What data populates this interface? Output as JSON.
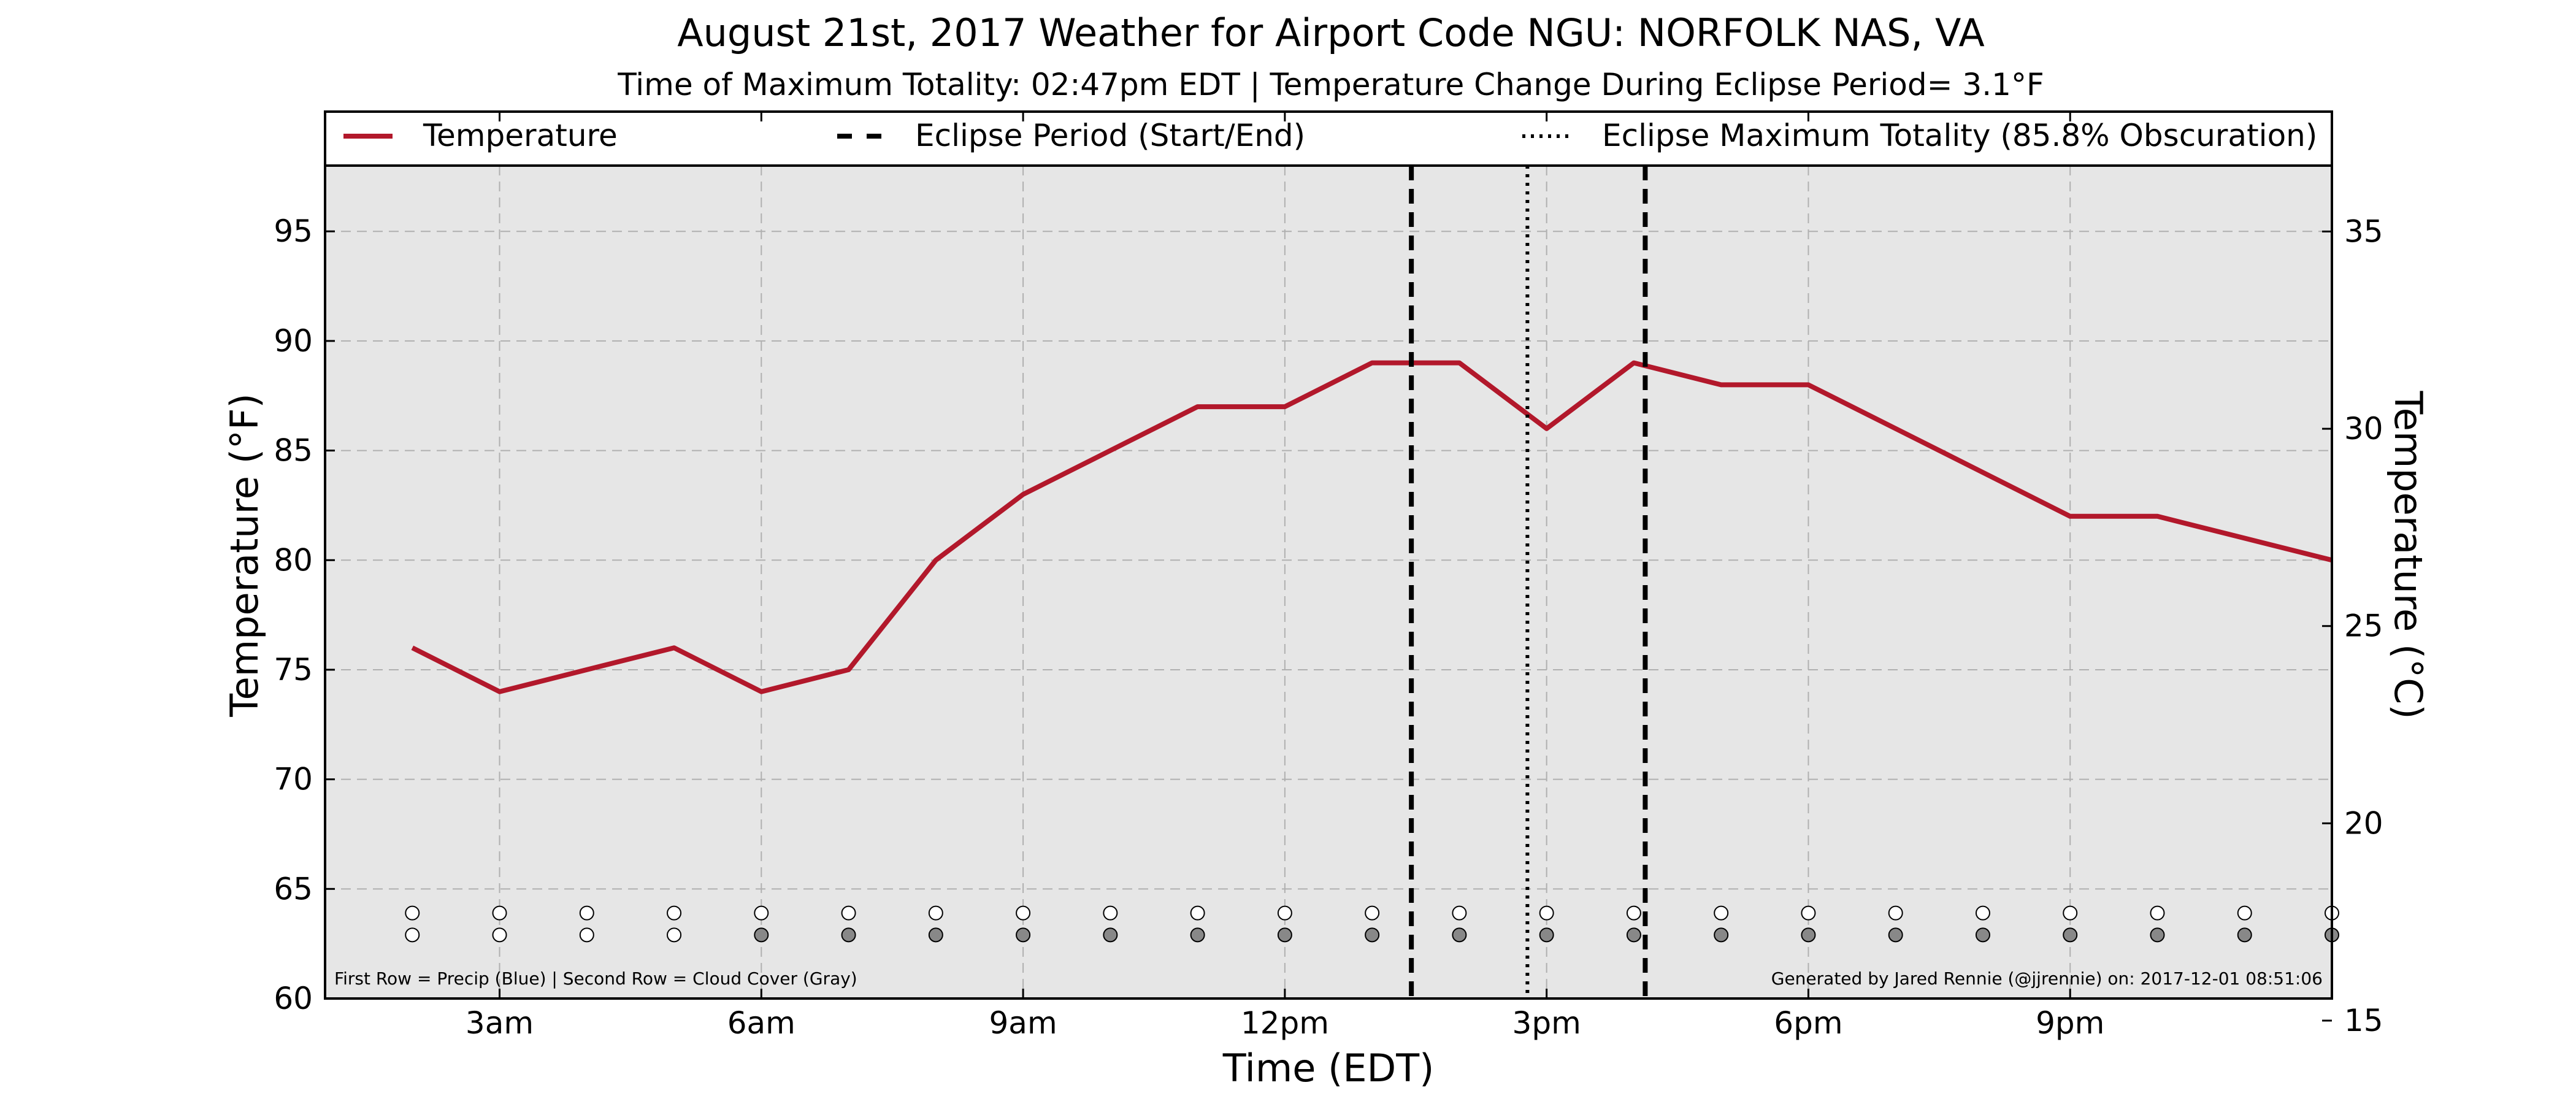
{
  "chart_data": {
    "type": "line",
    "title": "August 21st, 2017 Weather for Airport Code NGU: NORFOLK NAS, VA",
    "subtitle": "Time of Maximum Totality: 02:47pm EDT | Temperature Change During Eclipse Period= 3.1°F",
    "xlabel": "Time (EDT)",
    "ylabel": "Temperature (°F)",
    "y2label": "Temperature (°C)",
    "xlim": [
      1.0,
      24.0
    ],
    "ylim": [
      60,
      98
    ],
    "y2lim": [
      15.56,
      36.67
    ],
    "x_ticks": [
      {
        "x": 3,
        "label": "3am"
      },
      {
        "x": 6,
        "label": "6am"
      },
      {
        "x": 9,
        "label": "9am"
      },
      {
        "x": 12,
        "label": "12pm"
      },
      {
        "x": 15,
        "label": "3pm"
      },
      {
        "x": 18,
        "label": "6pm"
      },
      {
        "x": 21,
        "label": "9pm"
      }
    ],
    "y_ticks": [
      60,
      65,
      70,
      75,
      80,
      85,
      90,
      95
    ],
    "y2_ticks": [
      15,
      20,
      25,
      30,
      35
    ],
    "grid": true,
    "legend_position": "top",
    "legend": [
      {
        "label": "Temperature",
        "style": "solid"
      },
      {
        "label": "Eclipse Period (Start/End)",
        "style": "dashed"
      },
      {
        "label": "Eclipse Maximum Totality (85.8% Obscuration)",
        "style": "dotted"
      }
    ],
    "series": [
      {
        "name": "Temperature",
        "color": "#b2182b",
        "x": [
          2,
          3,
          4,
          5,
          6,
          7,
          8,
          9,
          10,
          11,
          12,
          13,
          14,
          15,
          16,
          17,
          18,
          19,
          20,
          21,
          22,
          23,
          24
        ],
        "y": [
          76,
          74,
          75,
          76,
          74,
          75,
          80,
          83,
          85,
          87,
          87,
          89,
          89,
          86,
          89,
          88,
          88,
          86,
          84,
          82,
          82,
          81,
          80
        ]
      }
    ],
    "eclipse_start": 13.45,
    "eclipse_end": 16.13,
    "max_totality": 14.78,
    "precip_row": [
      "none",
      "none",
      "none",
      "none",
      "none",
      "none",
      "none",
      "none",
      "none",
      "none",
      "none",
      "none",
      "none",
      "none",
      "none",
      "none",
      "none",
      "none",
      "none",
      "none",
      "none",
      "none",
      "none"
    ],
    "cloud_row": [
      "none",
      "none",
      "none",
      "none",
      "gray",
      "gray",
      "gray",
      "gray",
      "gray",
      "gray",
      "gray",
      "gray",
      "gray",
      "gray",
      "gray",
      "gray",
      "gray",
      "gray",
      "gray",
      "gray",
      "gray",
      "gray",
      "gray"
    ],
    "footer_left": "First Row = Precip (Blue) | Second Row = Cloud Cover (Gray)",
    "footer_right": "Generated by Jared Rennie (@jjrennie) on: 2017-12-01 08:51:06",
    "colors": {
      "line": "#b2182b",
      "plot_background": "#e6e6e6",
      "grid": "#b0b0b0",
      "cloud": "#888888",
      "empty_marker": "#ffffff"
    }
  }
}
